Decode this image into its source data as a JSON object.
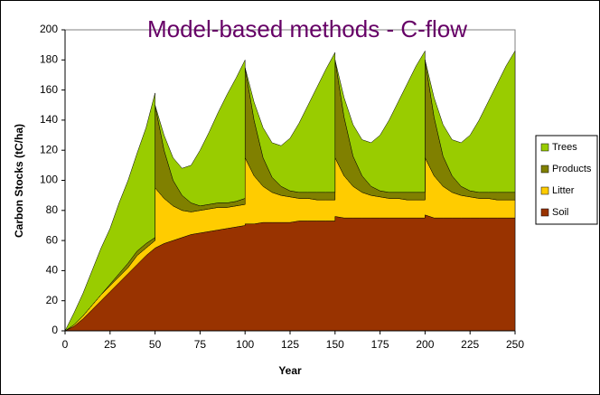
{
  "chart_data": {
    "type": "stacked_area",
    "title": "Model-based methods - C-flow",
    "xlabel": "Year",
    "ylabel": "Carbon Stocks (tC/ha)",
    "x": [
      0,
      5,
      10,
      15,
      20,
      25,
      30,
      35,
      40,
      45,
      50,
      50,
      55,
      60,
      65,
      70,
      75,
      80,
      85,
      90,
      95,
      100,
      100,
      105,
      110,
      115,
      120,
      125,
      130,
      135,
      140,
      145,
      150,
      150,
      155,
      160,
      165,
      170,
      175,
      180,
      185,
      190,
      195,
      200,
      200,
      205,
      210,
      215,
      220,
      225,
      230,
      235,
      240,
      245,
      250
    ],
    "series": [
      {
        "name": "Trees",
        "color": "#99cc00",
        "values": [
          0,
          8,
          15,
          23,
          31,
          37,
          47,
          55,
          65,
          77,
          96,
          0,
          10,
          15,
          18,
          25,
          37,
          48,
          60,
          72,
          82,
          92,
          0,
          12,
          20,
          23,
          27,
          35,
          46,
          58,
          70,
          82,
          93,
          0,
          13,
          21,
          24,
          29,
          37,
          48,
          60,
          72,
          84,
          94,
          0,
          13,
          21,
          24,
          29,
          37,
          48,
          60,
          72,
          84,
          94
        ]
      },
      {
        "name": "Products",
        "color": "#808000",
        "values": [
          0,
          0,
          0,
          0,
          0,
          1,
          2,
          3,
          3,
          3,
          2,
          55,
          32,
          17,
          10,
          6,
          3,
          3,
          3,
          3,
          3,
          4,
          60,
          37,
          19,
          10,
          6,
          4,
          4,
          4,
          5,
          5,
          5,
          65,
          39,
          20,
          11,
          6,
          4,
          4,
          4,
          5,
          5,
          5,
          65,
          39,
          20,
          11,
          6,
          4,
          4,
          4,
          5,
          5,
          5
        ]
      },
      {
        "name": "Litter",
        "color": "#ffcc00",
        "values": [
          0,
          1,
          2,
          3,
          4,
          4,
          4,
          4,
          6,
          5,
          5,
          40,
          30,
          23,
          18,
          15,
          15,
          15,
          15,
          14,
          14,
          14,
          44,
          32,
          24,
          20,
          18,
          17,
          15,
          15,
          14,
          14,
          14,
          39,
          28,
          21,
          17,
          15,
          14,
          13,
          13,
          12,
          12,
          12,
          38,
          28,
          21,
          17,
          15,
          14,
          13,
          13,
          12,
          12,
          12
        ]
      },
      {
        "name": "Soil",
        "color": "#993300",
        "values": [
          0,
          3,
          8,
          14,
          20,
          26,
          32,
          38,
          44,
          50,
          55,
          55,
          58,
          60,
          62,
          64,
          65,
          66,
          67,
          68,
          69,
          70,
          71,
          71,
          72,
          72,
          72,
          72,
          73,
          73,
          73,
          73,
          73,
          76,
          75,
          75,
          75,
          75,
          75,
          75,
          75,
          75,
          75,
          75,
          77,
          75,
          75,
          75,
          75,
          75,
          75,
          75,
          75,
          75,
          75
        ]
      }
    ],
    "xlim": [
      0,
      250
    ],
    "xticks": [
      0,
      25,
      50,
      75,
      100,
      125,
      150,
      175,
      200,
      225,
      250
    ],
    "ylim": [
      0,
      200
    ],
    "yticks": [
      0,
      20,
      40,
      60,
      80,
      100,
      120,
      140,
      160,
      180,
      200
    ],
    "legend": "right"
  }
}
